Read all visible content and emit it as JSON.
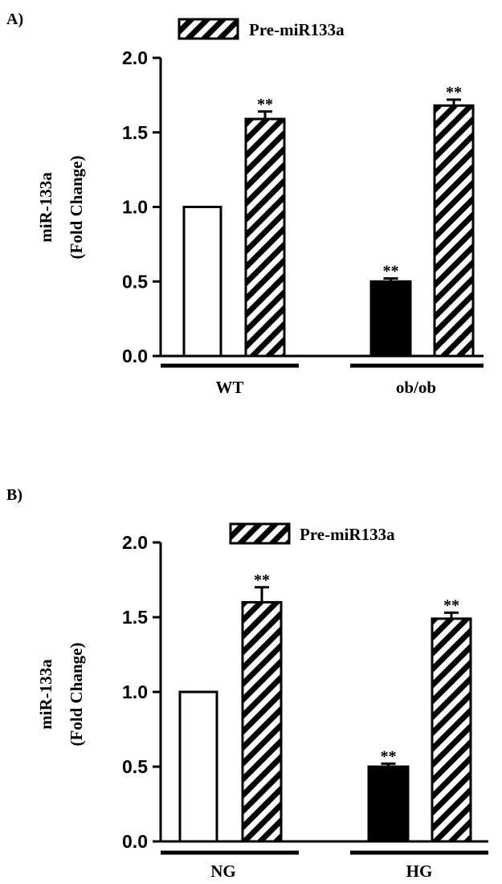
{
  "chart_data": [
    {
      "panel_label": "A)",
      "type": "bar",
      "ylabel": [
        "miR-133a",
        "(Fold Change)"
      ],
      "ylim": [
        0,
        2.0
      ],
      "yticks": [
        "0.0",
        "0.5",
        "1.0",
        "1.5",
        "2.0"
      ],
      "legend": {
        "label": "Pre-miR133a",
        "placement": "top"
      },
      "groups": [
        {
          "label": "WT",
          "bars": [
            {
              "style": "open",
              "value": 1.0,
              "error": 0,
              "annotation": ""
            },
            {
              "style": "hatched",
              "value": 1.59,
              "error": 0.05,
              "annotation": "**"
            }
          ]
        },
        {
          "label": "ob/ob",
          "bars": [
            {
              "style": "filled",
              "value": 0.5,
              "error": 0.02,
              "annotation": "**"
            },
            {
              "style": "hatched",
              "value": 1.68,
              "error": 0.04,
              "annotation": "**"
            }
          ]
        }
      ]
    },
    {
      "panel_label": "B)",
      "type": "bar",
      "ylabel": [
        "miR-133a",
        "(Fold Change)"
      ],
      "ylim": [
        0,
        2.0
      ],
      "yticks": [
        "0.0",
        "0.5",
        "1.0",
        "1.5",
        "2.0"
      ],
      "legend": {
        "label": "Pre-miR133a",
        "placement": "top"
      },
      "groups": [
        {
          "label": "NG",
          "bars": [
            {
              "style": "open",
              "value": 1.0,
              "error": 0,
              "annotation": ""
            },
            {
              "style": "hatched",
              "value": 1.6,
              "error": 0.1,
              "annotation": "**"
            }
          ]
        },
        {
          "label": "HG",
          "bars": [
            {
              "style": "filled",
              "value": 0.5,
              "error": 0.02,
              "annotation": "**"
            },
            {
              "style": "hatched",
              "value": 1.49,
              "error": 0.04,
              "annotation": "**"
            }
          ]
        }
      ]
    }
  ],
  "colors": {
    "ink": "#000000",
    "background": "#ffffff"
  }
}
